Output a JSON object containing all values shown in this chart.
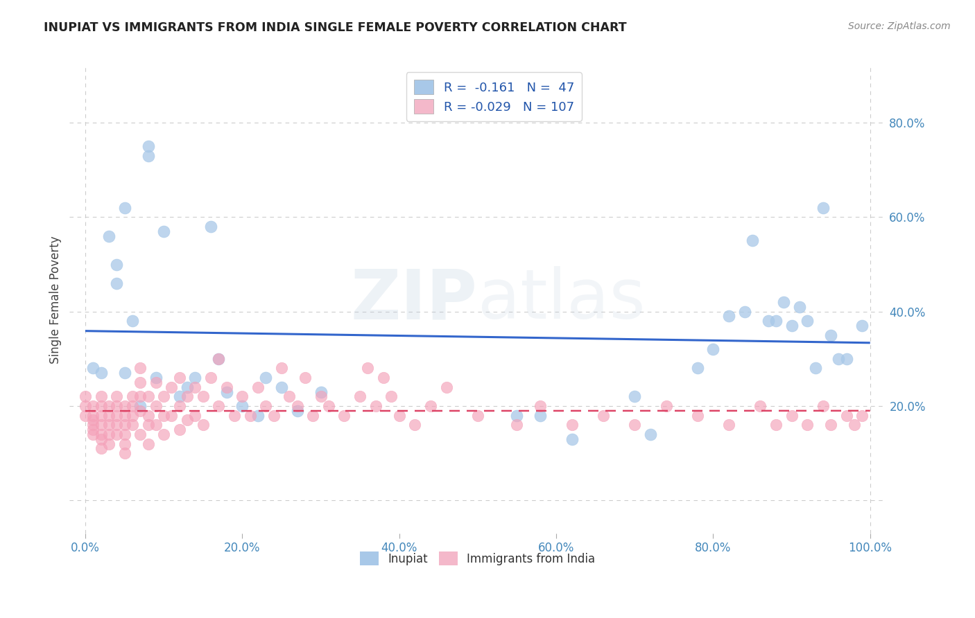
{
  "title": "INUPIAT VS IMMIGRANTS FROM INDIA SINGLE FEMALE POVERTY CORRELATION CHART",
  "source": "Source: ZipAtlas.com",
  "ylabel": "Single Female Poverty",
  "ytick_values": [
    0.0,
    0.2,
    0.4,
    0.6,
    0.8
  ],
  "ytick_labels": [
    "",
    "20.0%",
    "40.0%",
    "60.0%",
    "80.0%"
  ],
  "xtick_values": [
    0.0,
    0.2,
    0.4,
    0.6,
    0.8,
    1.0
  ],
  "xtick_labels": [
    "0.0%",
    "20.0%",
    "40.0%",
    "60.0%",
    "80.0%",
    "100.0%"
  ],
  "xlim": [
    -0.02,
    1.02
  ],
  "ylim": [
    -0.07,
    0.92
  ],
  "inupiat_R": "-0.161",
  "inupiat_N": "47",
  "india_R": "-0.029",
  "india_N": "107",
  "inupiat_color": "#a8c8e8",
  "india_color": "#f4a0b8",
  "inupiat_line_color": "#3366cc",
  "india_line_color": "#dd4466",
  "background_color": "#ffffff",
  "watermark_zip": "ZIP",
  "watermark_atlas": "atlas",
  "grid_color": "#cccccc",
  "tick_color": "#4488bb",
  "title_color": "#222222",
  "ylabel_color": "#444444",
  "source_color": "#888888",
  "legend_edge_color": "#cccccc",
  "inupiat_patch_color": "#a8c8e8",
  "india_patch_color": "#f4b8ca",
  "inupiat_x": [
    0.01,
    0.02,
    0.03,
    0.04,
    0.04,
    0.05,
    0.05,
    0.06,
    0.07,
    0.08,
    0.08,
    0.09,
    0.1,
    0.12,
    0.13,
    0.14,
    0.16,
    0.17,
    0.18,
    0.2,
    0.22,
    0.23,
    0.25,
    0.27,
    0.3,
    0.55,
    0.58,
    0.62,
    0.7,
    0.72,
    0.78,
    0.8,
    0.82,
    0.84,
    0.85,
    0.87,
    0.88,
    0.89,
    0.9,
    0.91,
    0.92,
    0.93,
    0.94,
    0.95,
    0.96,
    0.97,
    0.99
  ],
  "inupiat_y": [
    0.28,
    0.27,
    0.56,
    0.46,
    0.5,
    0.62,
    0.27,
    0.38,
    0.2,
    0.73,
    0.75,
    0.26,
    0.57,
    0.22,
    0.24,
    0.26,
    0.58,
    0.3,
    0.23,
    0.2,
    0.18,
    0.26,
    0.24,
    0.19,
    0.23,
    0.18,
    0.18,
    0.13,
    0.22,
    0.14,
    0.28,
    0.32,
    0.39,
    0.4,
    0.55,
    0.38,
    0.38,
    0.42,
    0.37,
    0.41,
    0.38,
    0.28,
    0.62,
    0.35,
    0.3,
    0.3,
    0.37
  ],
  "india_x": [
    0.0,
    0.0,
    0.0,
    0.01,
    0.01,
    0.01,
    0.01,
    0.01,
    0.01,
    0.02,
    0.02,
    0.02,
    0.02,
    0.02,
    0.02,
    0.02,
    0.03,
    0.03,
    0.03,
    0.03,
    0.03,
    0.04,
    0.04,
    0.04,
    0.04,
    0.04,
    0.05,
    0.05,
    0.05,
    0.05,
    0.05,
    0.05,
    0.06,
    0.06,
    0.06,
    0.06,
    0.07,
    0.07,
    0.07,
    0.07,
    0.07,
    0.08,
    0.08,
    0.08,
    0.08,
    0.09,
    0.09,
    0.09,
    0.1,
    0.1,
    0.1,
    0.11,
    0.11,
    0.12,
    0.12,
    0.12,
    0.13,
    0.13,
    0.14,
    0.14,
    0.15,
    0.15,
    0.16,
    0.17,
    0.17,
    0.18,
    0.19,
    0.2,
    0.21,
    0.22,
    0.23,
    0.24,
    0.25,
    0.26,
    0.27,
    0.28,
    0.29,
    0.3,
    0.31,
    0.33,
    0.35,
    0.36,
    0.37,
    0.38,
    0.39,
    0.4,
    0.42,
    0.44,
    0.46,
    0.5,
    0.55,
    0.58,
    0.62,
    0.66,
    0.7,
    0.74,
    0.78,
    0.82,
    0.86,
    0.88,
    0.9,
    0.92,
    0.94,
    0.95,
    0.97,
    0.98,
    0.99
  ],
  "india_y": [
    0.22,
    0.2,
    0.18,
    0.2,
    0.17,
    0.18,
    0.15,
    0.16,
    0.14,
    0.22,
    0.2,
    0.18,
    0.16,
    0.14,
    0.13,
    0.11,
    0.2,
    0.18,
    0.16,
    0.14,
    0.12,
    0.22,
    0.2,
    0.18,
    0.16,
    0.14,
    0.2,
    0.18,
    0.16,
    0.14,
    0.12,
    0.1,
    0.22,
    0.2,
    0.18,
    0.16,
    0.28,
    0.25,
    0.22,
    0.19,
    0.14,
    0.22,
    0.18,
    0.16,
    0.12,
    0.25,
    0.2,
    0.16,
    0.22,
    0.18,
    0.14,
    0.24,
    0.18,
    0.26,
    0.2,
    0.15,
    0.22,
    0.17,
    0.24,
    0.18,
    0.22,
    0.16,
    0.26,
    0.3,
    0.2,
    0.24,
    0.18,
    0.22,
    0.18,
    0.24,
    0.2,
    0.18,
    0.28,
    0.22,
    0.2,
    0.26,
    0.18,
    0.22,
    0.2,
    0.18,
    0.22,
    0.28,
    0.2,
    0.26,
    0.22,
    0.18,
    0.16,
    0.2,
    0.24,
    0.18,
    0.16,
    0.2,
    0.16,
    0.18,
    0.16,
    0.2,
    0.18,
    0.16,
    0.2,
    0.16,
    0.18,
    0.16,
    0.2,
    0.16,
    0.18,
    0.16,
    0.18
  ]
}
